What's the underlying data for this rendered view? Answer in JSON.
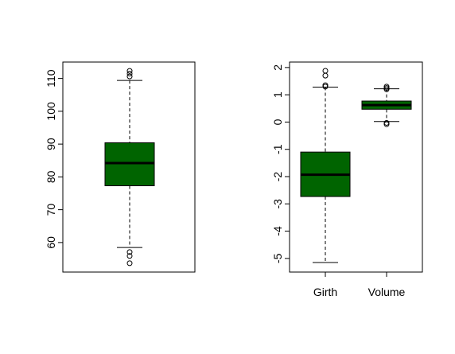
{
  "colors": {
    "box_fill": "#006400",
    "line": "#000000",
    "background": "#ffffff"
  },
  "chart_data": [
    {
      "type": "box",
      "title": "",
      "xlabel": "",
      "ylabel": "",
      "ylim": [
        51,
        115
      ],
      "y_ticks": [
        60,
        70,
        80,
        90,
        100,
        110
      ],
      "y_tick_labels": [
        "60",
        "70",
        "80",
        "90",
        "100",
        "110"
      ],
      "boxes": [
        {
          "name": "",
          "whisker_low": 58.5,
          "q1": 77.3,
          "median": 84.2,
          "q3": 90.4,
          "whisker_high": 109.4,
          "outliers": [
            53.7,
            55.9,
            57.1,
            110.6,
            111.5,
            112.3
          ]
        }
      ]
    },
    {
      "type": "box",
      "title": "",
      "xlabel": "",
      "ylabel": "",
      "ylim": [
        -5.5,
        2.2
      ],
      "y_ticks": [
        -5,
        -4,
        -3,
        -2,
        -1,
        0,
        1,
        2
      ],
      "y_tick_labels": [
        "-5",
        "-4",
        "-3",
        "-2",
        "-1",
        "0",
        "1",
        "2"
      ],
      "categories": [
        "Girth",
        "Volume"
      ],
      "boxes": [
        {
          "name": "Girth",
          "whisker_low": -5.15,
          "q1": -2.73,
          "median": -1.93,
          "q3": -1.1,
          "whisker_high": 1.28,
          "outliers": [
            1.3,
            1.35,
            1.7,
            1.88
          ]
        },
        {
          "name": "Volume",
          "whisker_low": 0.02,
          "q1": 0.47,
          "median": 0.62,
          "q3": 0.77,
          "whisker_high": 1.22,
          "outliers": [
            -0.08,
            -0.03,
            1.2,
            1.25,
            1.3
          ]
        }
      ]
    }
  ]
}
